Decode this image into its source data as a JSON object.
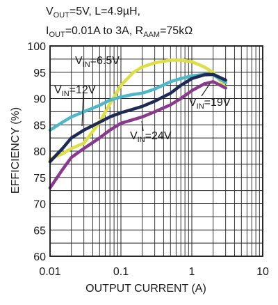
{
  "chart_data": {
    "type": "line",
    "title_lines": [
      [
        "V",
        "OUT",
        "=5V, L=4.9µH,"
      ],
      [
        "I",
        "OUT",
        "=0.01A to 3A, R",
        "AAM",
        "=75kΩ"
      ]
    ],
    "xlabel": "OUTPUT CURRENT (A)",
    "ylabel": "EFFICIENCY (%)",
    "xscale": "log",
    "xlim": [
      0.01,
      10
    ],
    "ylim": [
      60,
      100
    ],
    "x_ticks": [
      "0.01",
      "0.1",
      "1",
      "10"
    ],
    "y_ticks": [
      "60",
      "65",
      "70",
      "75",
      "80",
      "85",
      "90",
      "95",
      "100"
    ],
    "grid": true,
    "series": [
      {
        "name": "VIN=6.5V",
        "label_main": "V",
        "label_sub": "IN",
        "label_rest": "=6.5V",
        "color": "#dede45",
        "x": [
          0.01,
          0.015,
          0.02,
          0.03,
          0.05,
          0.07,
          0.1,
          0.15,
          0.2,
          0.3,
          0.5,
          0.7,
          1.0,
          1.5,
          2.0,
          3.0
        ],
        "y": [
          78.5,
          79.5,
          80.5,
          81.5,
          85.5,
          89.0,
          92.5,
          95.0,
          96.0,
          96.8,
          97.3,
          97.3,
          97.0,
          96.0,
          95.0,
          92.0
        ]
      },
      {
        "name": "VIN=12V",
        "label_main": "V",
        "label_sub": "IN",
        "label_rest": "=12V",
        "color": "#4fb8c8",
        "x": [
          0.01,
          0.015,
          0.02,
          0.03,
          0.05,
          0.07,
          0.1,
          0.15,
          0.2,
          0.3,
          0.5,
          0.7,
          1.0,
          1.5,
          2.0,
          3.0
        ],
        "y": [
          84.0,
          85.5,
          86.5,
          87.5,
          88.7,
          89.7,
          90.3,
          90.8,
          91.0,
          91.8,
          93.2,
          93.8,
          94.3,
          94.6,
          94.5,
          93.0
        ]
      },
      {
        "name": "VIN=19V",
        "label_main": "V",
        "label_sub": "IN",
        "label_rest": "=19V",
        "color": "#1d2a55",
        "x": [
          0.01,
          0.015,
          0.02,
          0.03,
          0.05,
          0.07,
          0.1,
          0.15,
          0.2,
          0.3,
          0.5,
          0.7,
          1.0,
          1.5,
          2.0,
          3.0
        ],
        "y": [
          78.0,
          80.5,
          82.5,
          84.0,
          85.5,
          86.5,
          87.3,
          88.0,
          88.5,
          89.5,
          91.0,
          92.5,
          93.8,
          94.5,
          94.6,
          93.5
        ]
      },
      {
        "name": "VIN=24V",
        "label_main": "V",
        "label_sub": "IN",
        "label_rest": "=24V",
        "color": "#8a3a8c",
        "x": [
          0.01,
          0.015,
          0.02,
          0.03,
          0.05,
          0.07,
          0.1,
          0.15,
          0.2,
          0.3,
          0.5,
          0.7,
          1.0,
          1.5,
          2.0,
          3.0
        ],
        "y": [
          73.0,
          76.5,
          78.8,
          80.5,
          82.5,
          84.0,
          85.3,
          86.0,
          86.5,
          87.5,
          88.8,
          90.0,
          91.5,
          92.8,
          93.2,
          92.0
        ]
      }
    ]
  }
}
